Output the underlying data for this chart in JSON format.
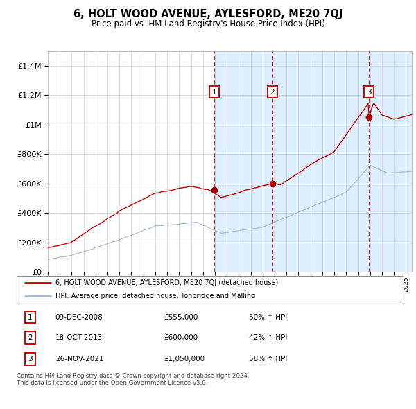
{
  "title": "6, HOLT WOOD AVENUE, AYLESFORD, ME20 7QJ",
  "subtitle": "Price paid vs. HM Land Registry's House Price Index (HPI)",
  "legend_line1": "6, HOLT WOOD AVENUE, AYLESFORD, ME20 7QJ (detached house)",
  "legend_line2": "HPI: Average price, detached house, Tonbridge and Malling",
  "copyright_text": "Contains HM Land Registry data © Crown copyright and database right 2024.\nThis data is licensed under the Open Government Licence v3.0.",
  "sale_prices": [
    555000,
    600000,
    1050000
  ],
  "sale_labels": [
    "1",
    "2",
    "3"
  ],
  "sale_info": [
    {
      "label": "1",
      "date": "09-DEC-2008",
      "price": "£555,000",
      "pct": "50% ↑ HPI"
    },
    {
      "label": "2",
      "date": "18-OCT-2013",
      "price": "£600,000",
      "pct": "42% ↑ HPI"
    },
    {
      "label": "3",
      "date": "26-NOV-2021",
      "price": "£1,050,000",
      "pct": "58% ↑ HPI"
    }
  ],
  "hpi_color": "#a0b8d8",
  "price_color": "#cc0000",
  "sale_line_color": "#cc0000",
  "sale_box_color": "#cc0000",
  "shade_color": "#ddeeff",
  "ylim": [
    0,
    1500000
  ],
  "yticks": [
    0,
    200000,
    400000,
    600000,
    800000,
    1000000,
    1200000,
    1400000
  ],
  "xlim_start": 1995.0,
  "xlim_end": 2025.5,
  "background_color": "#ffffff",
  "grid_color": "#cccccc"
}
